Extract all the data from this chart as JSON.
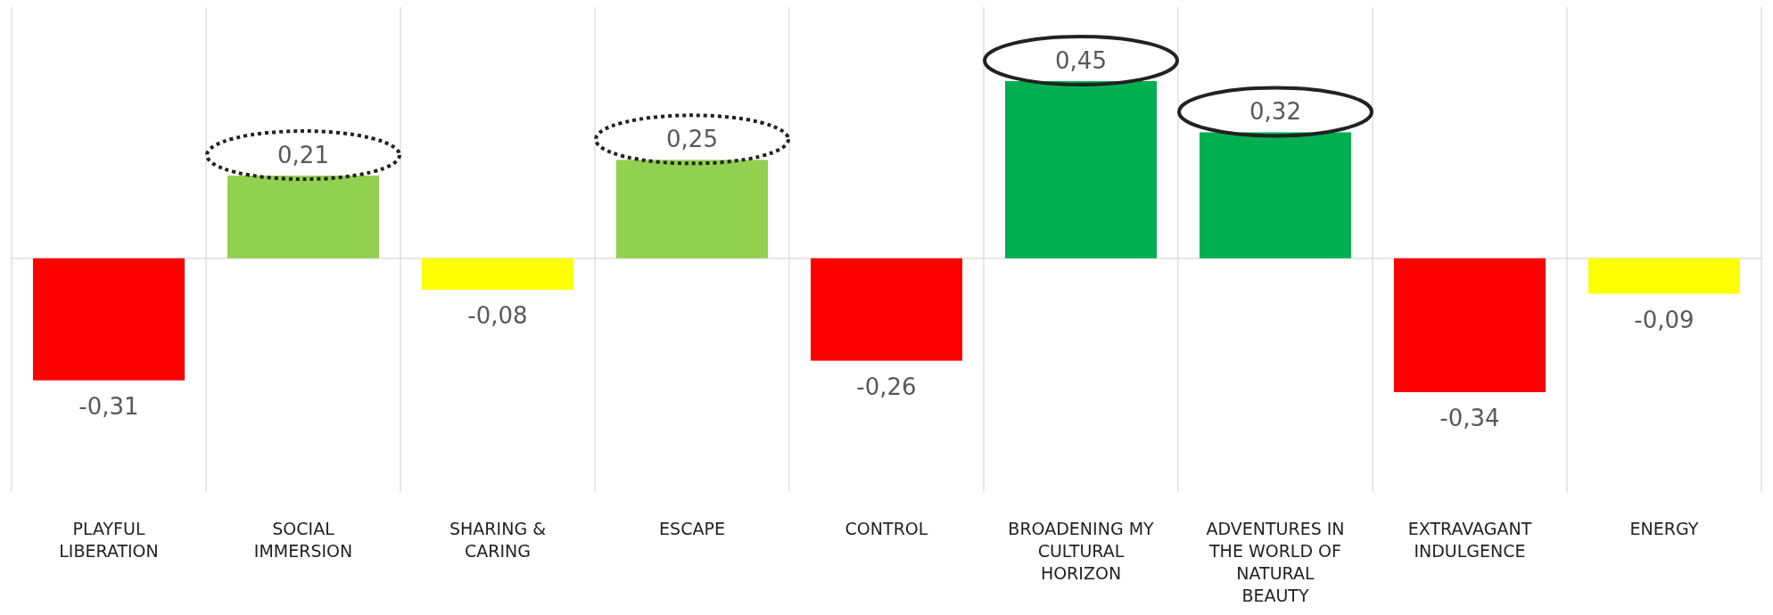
{
  "chart_data": {
    "type": "bar",
    "categories": [
      "PLAYFUL LIBERATION",
      "SOCIAL IMMERSION",
      "SHARING & CARING",
      "ESCAPE",
      "CONTROL",
      "BROADENING MY CULTURAL HORIZON",
      "ADVENTURES IN THE WORLD OF NATURAL BEAUTY",
      "EXTRAVAGANT INDULGENCE",
      "ENERGY"
    ],
    "values": [
      -0.31,
      0.21,
      -0.08,
      0.25,
      -0.26,
      0.45,
      0.32,
      -0.34,
      -0.09
    ],
    "colors": [
      "#ff0000",
      "#92d050",
      "#ffff00",
      "#92d050",
      "#ff0000",
      "#00b050",
      "#00b050",
      "#ff0000",
      "#ffff00"
    ],
    "value_labels": [
      "-0,31",
      "0,21",
      "-0,08",
      "0,25",
      "-0,26",
      "0,45",
      "0,32",
      "-0,34",
      "-0,09"
    ],
    "grid": "x"
  }
}
